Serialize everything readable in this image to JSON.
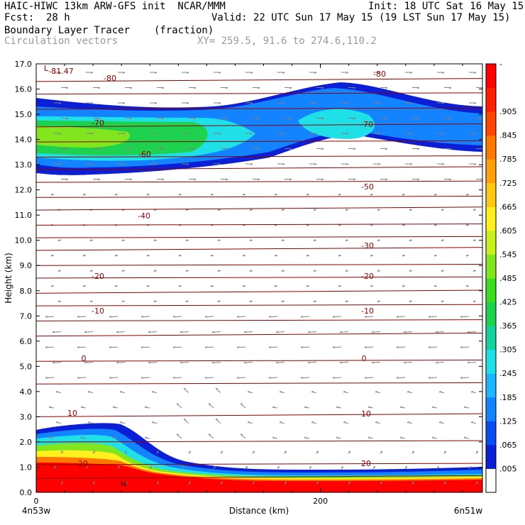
{
  "header": {
    "line1_left": "HAIC-HIWC 13km ARW-GFS init  NCAR/MMM",
    "line1_right": "Init: 18 UTC Sat 16 May 15",
    "line2_left": "Fcst:  28 h",
    "line2_right": "Valid: 22 UTC Sun 17 May 15 (19 LST Sun 17 May 15)",
    "line3_left": "Boundary Layer Tracer",
    "line3_units": "(fraction)",
    "line4_left": "Circulation vectors",
    "line4_right": "XY= 259.5, 91.6 to 274.6,110.2"
  },
  "chart_data": {
    "type": "heatmap",
    "title": "Boundary Layer Tracer",
    "units": "(fraction)",
    "xlabel": "Distance (km)",
    "ylabel": "Height (km)",
    "xlim": [
      0,
      314
    ],
    "ylim": [
      0,
      17
    ],
    "x_ticks": [
      {
        "value": 0,
        "label": "0"
      },
      {
        "value": 200,
        "label": "200"
      }
    ],
    "x_end_labels": {
      "left": "4n53w",
      "right": "6n51w"
    },
    "y_ticks": [
      "0.0",
      "1.0",
      "2.0",
      "3.0",
      "4.0",
      "5.0",
      "6.0",
      "7.0",
      "8.0",
      "9.0",
      "10.0",
      "11.0",
      "12.0",
      "13.0",
      "14.0",
      "15.0",
      "16.0",
      "17.0"
    ],
    "colorbar": {
      "labels": [
        ".005",
        ".065",
        ".125",
        ".185",
        ".245",
        ".305",
        ".365",
        ".425",
        ".485",
        ".545",
        ".605",
        ".665",
        ".725",
        ".785",
        ".845",
        ".905"
      ],
      "top_label": "-",
      "colors": [
        "#ffffff",
        "#0a1fd6",
        "#0a4cf0",
        "#1483ff",
        "#1eb4ff",
        "#1ee0e6",
        "#14d2a0",
        "#1ed250",
        "#3cdc1e",
        "#82e61e",
        "#c8f01e",
        "#fff01e",
        "#ffc814",
        "#ffa00a",
        "#ff7800",
        "#ff4600",
        "#ff1e00",
        "#ff0000"
      ]
    },
    "temperature_contours": {
      "labels": [
        "-81.47",
        "-80",
        "-80",
        "-70",
        "-70",
        "-60",
        "-50",
        "-40",
        "-30",
        "-20",
        "-20",
        "-10",
        "-10",
        "0",
        "0",
        "10",
        "10",
        "20",
        "20"
      ],
      "color": "#8b0000"
    },
    "annotations": [
      "L",
      "H"
    ],
    "vector_field": {
      "color": "#808080"
    }
  }
}
